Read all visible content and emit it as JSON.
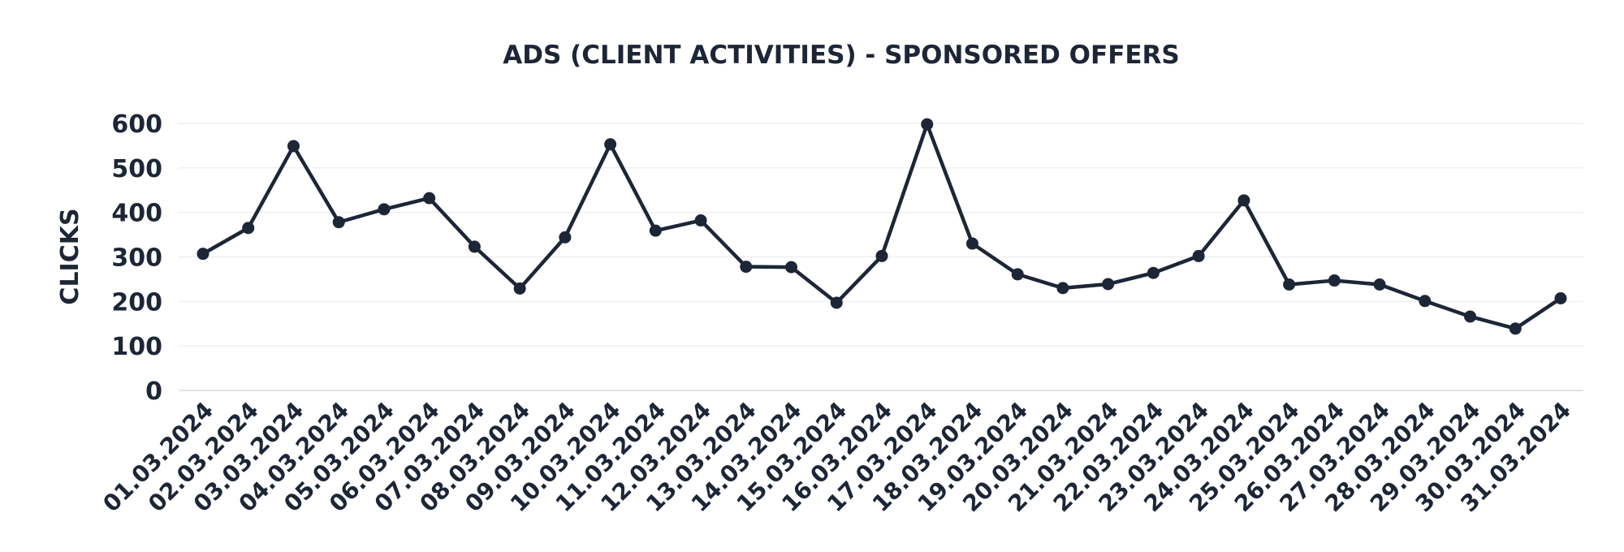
{
  "chart_data": {
    "type": "line",
    "title": "ADS (CLIENT ACTIVITIES) - SPONSORED OFFERS",
    "xlabel": "",
    "ylabel": "CLICKS",
    "ylim": [
      0,
      600
    ],
    "yticks": [
      "0",
      "100",
      "200",
      "300",
      "400",
      "500",
      "600"
    ],
    "grid": true,
    "legend": "none",
    "categories": [
      "01.03.2024",
      "02.03.2024",
      "03.03.2024",
      "04.03.2024",
      "05.03.2024",
      "06.03.2024",
      "07.03.2024",
      "08.03.2024",
      "09.03.2024",
      "10.03.2024",
      "11.03.2024",
      "12.03.2024",
      "13.03.2024",
      "14.03.2024",
      "15.03.2024",
      "16.03.2024",
      "17.03.2024",
      "18.03.2024",
      "19.03.2024",
      "20.03.2024",
      "21.03.2024",
      "22.03.2024",
      "23.03.2024",
      "24.03.2024",
      "25.03.2024",
      "26.03.2024",
      "27.03.2024",
      "28.03.2024",
      "29.03.2024",
      "30.03.2024",
      "31.03.2024"
    ],
    "series": [
      {
        "values": [
          307,
          365,
          549,
          378,
          407,
          432,
          323,
          229,
          344,
          553,
          359,
          382,
          278,
          277,
          197,
          302,
          598,
          330,
          261,
          230,
          239,
          264,
          302,
          427,
          238,
          247,
          238,
          201,
          166,
          139,
          207
        ]
      }
    ],
    "colors": {
      "line": "#1d2636",
      "text": "#1d2636",
      "grid": "#e9ecef"
    }
  }
}
